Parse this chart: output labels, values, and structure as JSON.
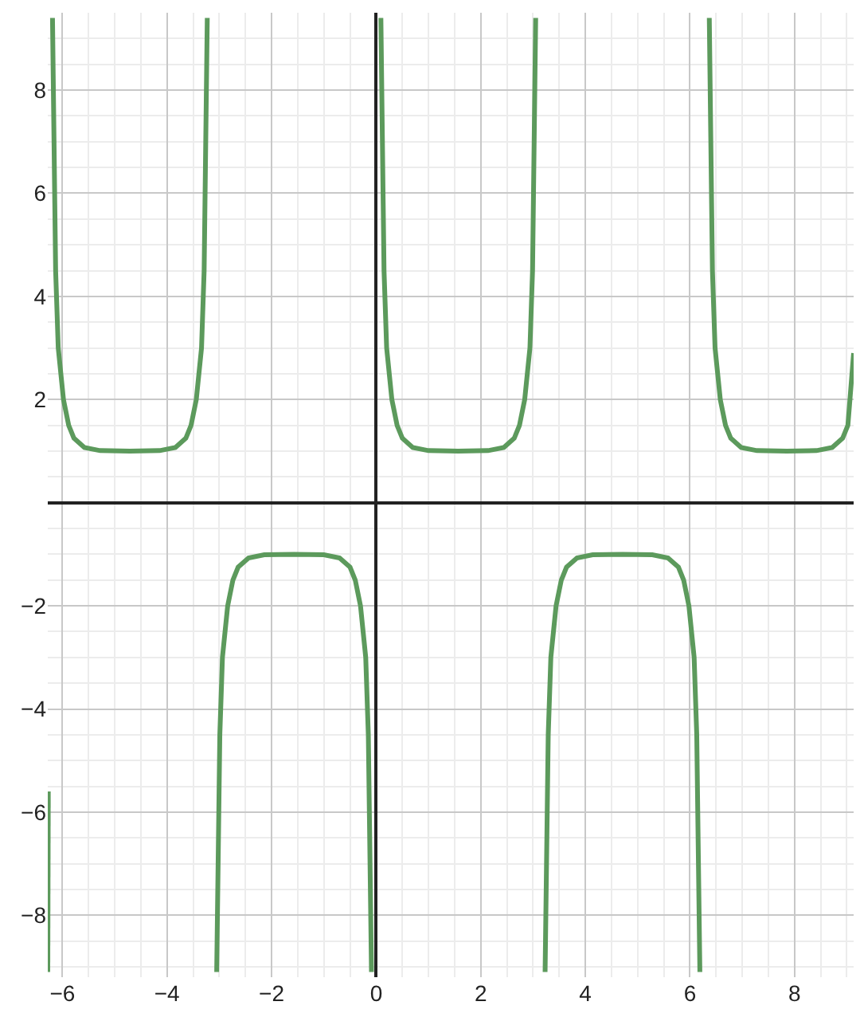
{
  "chart_data": {
    "type": "line",
    "x": [
      -6.28,
      -6.27,
      -6.23,
      -6.19,
      -6.13,
      -6.08,
      -5.98,
      -5.88,
      -5.78,
      -5.58,
      -5.28,
      -4.71,
      -4.14,
      -3.84,
      -3.64,
      -3.54,
      -3.44,
      -3.34,
      -3.29,
      -3.23,
      -3.14,
      -3.05,
      -2.99,
      -2.94,
      -2.84,
      -2.74,
      -2.64,
      -2.44,
      -2.14,
      -1.57,
      -1.0,
      -0.7,
      -0.5,
      -0.4,
      -0.3,
      -0.2,
      -0.15,
      -0.09,
      0,
      0.09,
      0.15,
      0.2,
      0.3,
      0.4,
      0.5,
      0.7,
      1.0,
      1.57,
      2.14,
      2.44,
      2.64,
      2.74,
      2.84,
      2.94,
      2.99,
      3.05,
      3.14,
      3.23,
      3.29,
      3.34,
      3.44,
      3.54,
      3.64,
      3.84,
      4.14,
      4.71,
      5.28,
      5.58,
      5.78,
      5.88,
      5.98,
      6.08,
      6.13,
      6.19,
      6.28,
      6.37,
      6.43,
      6.48,
      6.58,
      6.68,
      6.78,
      6.98,
      7.28,
      7.85,
      8.42,
      8.72,
      8.92,
      9.02,
      9.13
    ],
    "series": [
      {
        "color": "#5c9a5c",
        "values": [
          -9.1,
          -5.6,
          null,
          9.4,
          4.5,
          3.0,
          2.0,
          1.5,
          1.25,
          1.07,
          1.01,
          1.0,
          1.01,
          1.07,
          1.25,
          1.5,
          2.0,
          3.0,
          4.5,
          9.4,
          null,
          -9.1,
          -4.5,
          -3.0,
          -2.0,
          -1.5,
          -1.25,
          -1.07,
          -1.01,
          -1.0,
          -1.01,
          -1.07,
          -1.25,
          -1.5,
          -2.0,
          -3.0,
          -4.5,
          -9.1,
          null,
          9.4,
          4.5,
          3.0,
          2.0,
          1.5,
          1.25,
          1.07,
          1.01,
          1.0,
          1.01,
          1.07,
          1.25,
          1.5,
          2.0,
          3.0,
          4.5,
          9.4,
          null,
          -9.1,
          -4.5,
          -3.0,
          -2.0,
          -1.5,
          -1.25,
          -1.07,
          -1.01,
          -1.0,
          -1.01,
          -1.07,
          -1.25,
          -1.5,
          -2.0,
          -3.0,
          -4.5,
          -9.1,
          null,
          9.4,
          4.5,
          3.0,
          2.0,
          1.5,
          1.25,
          1.07,
          1.01,
          1.0,
          1.01,
          1.07,
          1.25,
          1.5,
          2.9
        ]
      }
    ],
    "xlim": [
      -6.28,
      9.13
    ],
    "ylim": [
      -9.2,
      9.5
    ],
    "xticks": [
      -6,
      -4,
      -2,
      0,
      2,
      4,
      6,
      8
    ],
    "yticks": [
      -8,
      -6,
      -4,
      -2,
      2,
      4,
      6,
      8
    ],
    "grid": true,
    "line_style": "solid",
    "marker": "none"
  }
}
